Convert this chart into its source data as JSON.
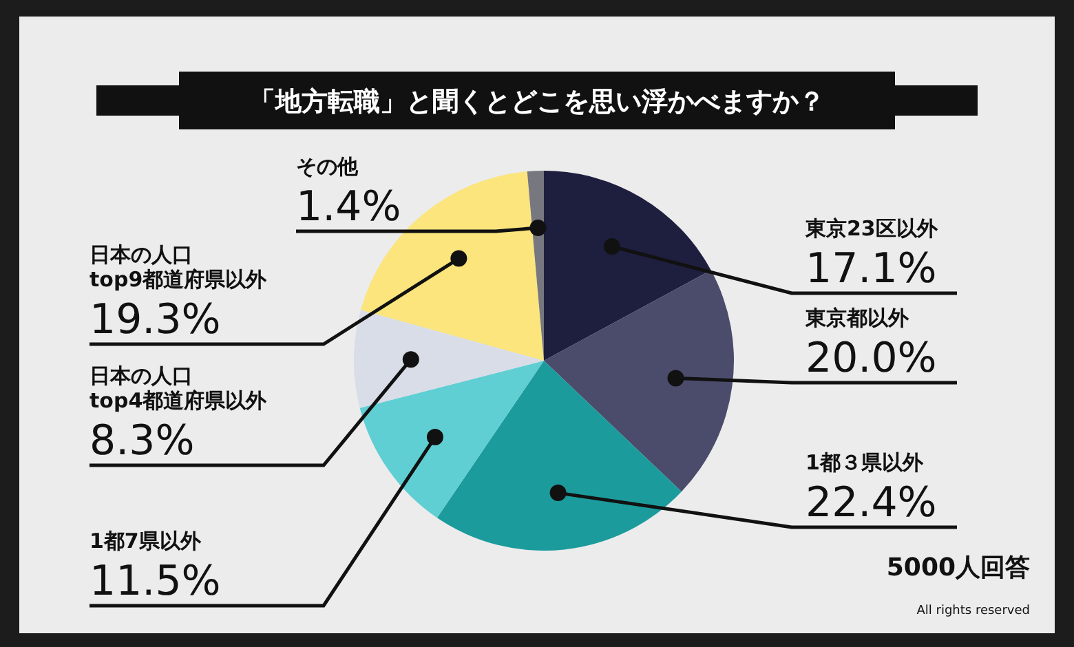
{
  "chart_data": {
    "type": "pie",
    "title": "「地方転職」と聞くとどこを思い浮かべますか？",
    "categories": [
      "東京23区以外",
      "東京都以外",
      "1都３県以外",
      "1都7県以外",
      "日本の人口\ntop4都道府県以外",
      "日本の人口\ntop9都道府県以外",
      "その他"
    ],
    "values": [
      17.1,
      20.0,
      22.4,
      11.5,
      8.3,
      19.3,
      1.4
    ],
    "colors": [
      "#1e1f3f",
      "#4b4b6b",
      "#1c9b9c",
      "#5fcfd4",
      "#d9dde8",
      "#fbe57c",
      "#77777f"
    ],
    "value_labels": [
      "17.1%",
      "20.0%",
      "22.4%",
      "11.5%",
      "8.3%",
      "19.3%",
      "1.4%"
    ],
    "annotations": [
      "5000人回答",
      "All rights reserved"
    ]
  }
}
